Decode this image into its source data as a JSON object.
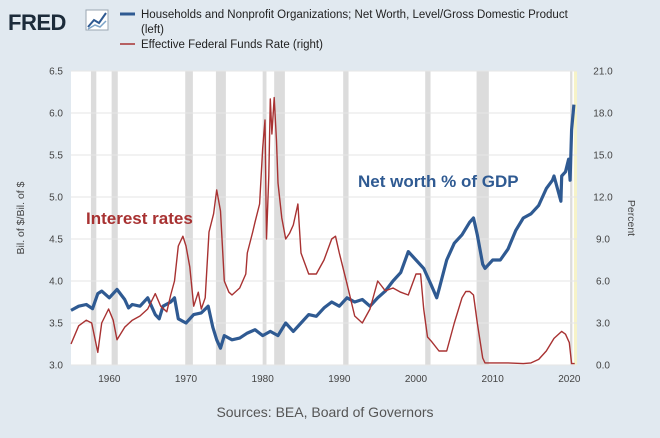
{
  "header": {
    "logo_text": "FRED",
    "legend": [
      {
        "label_line1": "Households and Nonprofit Organizations; Net Worth, Level/Gross Domestic Product",
        "label_line2": "(left)",
        "color": "#2f5a92"
      },
      {
        "label_line1": "Effective Federal Funds Rate (right)",
        "label_line2": "",
        "color": "#a83232"
      }
    ]
  },
  "chart_data": {
    "type": "line",
    "xlim": [
      1955,
      2021
    ],
    "ylim_left": [
      3.0,
      6.5
    ],
    "ylim_right": [
      0.0,
      21.0
    ],
    "x_ticks": [
      1960,
      1970,
      1980,
      1990,
      2000,
      2010,
      2020
    ],
    "y_left_ticks": [
      "3.0",
      "3.5",
      "4.0",
      "4.5",
      "5.0",
      "5.5",
      "6.0",
      "6.5"
    ],
    "y_right_ticks": [
      "0.0",
      "3.0",
      "6.0",
      "9.0",
      "12.0",
      "15.0",
      "18.0",
      "21.0"
    ],
    "ylabel_left": "Bil. of $/Bil. of $",
    "ylabel_right": "Percent",
    "recessions": [
      [
        1957.6,
        1958.3
      ],
      [
        1960.3,
        1961.1
      ],
      [
        1969.9,
        1970.9
      ],
      [
        1973.9,
        1975.2
      ],
      [
        1980.0,
        1980.5
      ],
      [
        1981.5,
        1982.9
      ],
      [
        1990.5,
        1991.2
      ],
      [
        2001.2,
        2001.9
      ],
      [
        2007.9,
        2009.5
      ],
      [
        2020.1,
        2020.4
      ]
    ],
    "series": [
      {
        "name": "Households and Nonprofit Organizations; Net Worth, Level/Gross Domestic Product",
        "axis": "left",
        "color": "#2f5a92",
        "x": [
          1955,
          1956,
          1957,
          1957.8,
          1958.5,
          1959,
          1960,
          1961,
          1962,
          1962.5,
          1963,
          1964,
          1965,
          1966,
          1966.5,
          1967,
          1968,
          1968.5,
          1969,
          1970,
          1971,
          1972,
          1972.9,
          1973.5,
          1974,
          1974.5,
          1975,
          1976,
          1977,
          1978,
          1979,
          1980,
          1981,
          1982,
          1983,
          1984,
          1985,
          1986,
          1987,
          1988,
          1989,
          1990,
          1991,
          1992,
          1993,
          1994,
          1995,
          1996,
          1997,
          1998,
          1999,
          2000,
          2001,
          2002,
          2002.7,
          2003,
          2004,
          2005,
          2006,
          2007,
          2007.5,
          2008,
          2008.7,
          2009,
          2010,
          2011,
          2012,
          2013,
          2014,
          2015,
          2016,
          2017,
          2017.8,
          2018,
          2018.9,
          2019,
          2019.5,
          2019.9,
          2020.1,
          2020.3,
          2020.6
        ],
        "y": [
          3.65,
          3.7,
          3.72,
          3.67,
          3.85,
          3.88,
          3.8,
          3.9,
          3.78,
          3.68,
          3.72,
          3.7,
          3.8,
          3.6,
          3.55,
          3.7,
          3.75,
          3.8,
          3.55,
          3.5,
          3.6,
          3.62,
          3.7,
          3.45,
          3.3,
          3.2,
          3.35,
          3.3,
          3.32,
          3.38,
          3.42,
          3.35,
          3.4,
          3.35,
          3.5,
          3.4,
          3.5,
          3.6,
          3.58,
          3.68,
          3.75,
          3.7,
          3.8,
          3.75,
          3.78,
          3.7,
          3.8,
          3.88,
          4.0,
          4.1,
          4.35,
          4.25,
          4.15,
          3.95,
          3.8,
          3.9,
          4.25,
          4.45,
          4.55,
          4.7,
          4.75,
          4.55,
          4.2,
          4.15,
          4.25,
          4.25,
          4.38,
          4.6,
          4.75,
          4.8,
          4.9,
          5.1,
          5.2,
          5.25,
          4.95,
          5.25,
          5.3,
          5.45,
          5.2,
          5.8,
          6.1
        ]
      },
      {
        "name": "Effective Federal Funds Rate (right)",
        "axis": "right",
        "color": "#a83232",
        "x": [
          1955,
          1956,
          1957,
          1957.7,
          1958.5,
          1959,
          1959.9,
          1960.5,
          1961,
          1962,
          1963,
          1964,
          1965,
          1966,
          1966.7,
          1967.5,
          1968,
          1968.5,
          1969,
          1969.6,
          1970,
          1970.5,
          1971,
          1971.6,
          1972,
          1972.5,
          1973,
          1973.6,
          1974,
          1974.5,
          1975,
          1975.6,
          1976,
          1977,
          1977.8,
          1978,
          1978.7,
          1979,
          1979.6,
          1980,
          1980.3,
          1980.5,
          1980.8,
          1981,
          1981.2,
          1981.5,
          1981.8,
          1982,
          1982.5,
          1983,
          1983.5,
          1984,
          1984.6,
          1985,
          1986,
          1987,
          1988,
          1989,
          1989.5,
          1990,
          1991,
          1992,
          1993,
          1994,
          1995,
          1996,
          1997,
          1998,
          1999,
          2000,
          2000.6,
          2001,
          2001.5,
          2002,
          2003,
          2004,
          2005,
          2006,
          2006.5,
          2007,
          2007.5,
          2008,
          2008.7,
          2009,
          2010,
          2012,
          2014,
          2015,
          2016,
          2017,
          2018,
          2019,
          2019.5,
          2020,
          2020.3,
          2020.7
        ],
        "y": [
          1.5,
          2.8,
          3.2,
          3.0,
          0.9,
          3.0,
          4.0,
          3.2,
          1.8,
          2.7,
          3.2,
          3.5,
          4.0,
          5.1,
          4.2,
          3.8,
          5.0,
          6.0,
          8.5,
          9.2,
          8.5,
          7.0,
          4.2,
          5.2,
          4.0,
          4.8,
          9.5,
          10.8,
          12.5,
          11.0,
          6.0,
          5.2,
          5.0,
          5.5,
          6.5,
          8.0,
          9.5,
          10.2,
          11.5,
          15.5,
          17.5,
          9.0,
          13.5,
          19.0,
          16.5,
          19.1,
          16.0,
          13.0,
          10.5,
          9.0,
          9.4,
          10.0,
          11.5,
          8.0,
          6.5,
          6.5,
          7.5,
          9.0,
          9.2,
          8.0,
          5.8,
          3.5,
          3.0,
          4.0,
          6.0,
          5.3,
          5.5,
          5.2,
          5.0,
          6.5,
          6.5,
          4.0,
          2.0,
          1.7,
          1.0,
          1.0,
          3.0,
          4.8,
          5.25,
          5.25,
          5.0,
          3.0,
          0.5,
          0.15,
          0.15,
          0.15,
          0.1,
          0.15,
          0.4,
          1.0,
          1.9,
          2.4,
          2.2,
          1.6,
          0.1,
          0.1
        ]
      }
    ],
    "annotations": [
      {
        "text": "Net worth % of GDP",
        "color": "#2f5a92"
      },
      {
        "text": "Interest rates",
        "color": "#a83232"
      }
    ],
    "source": "Sources: BEA, Board of Governors"
  }
}
